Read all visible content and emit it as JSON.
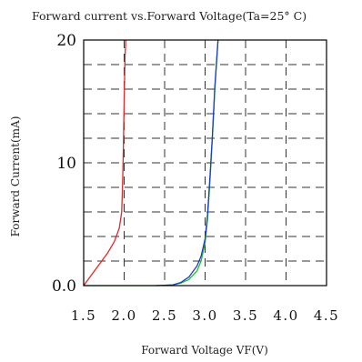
{
  "chart_data": {
    "type": "line",
    "title": "Forward current vs.Forward Voltage(Ta=25° C)",
    "xlabel": "Forward Voltage VF(V)",
    "ylabel": "Forward Current(mA)",
    "xlim": [
      1.5,
      4.5
    ],
    "ylim": [
      0,
      20
    ],
    "grid": true,
    "x_ticks": [
      1.5,
      2.0,
      2.5,
      3.0,
      3.5,
      4.0,
      4.5
    ],
    "x_tick_labels": [
      "1.5",
      "2.0",
      "2.5",
      "3.0",
      "3.5",
      "4.0",
      "4.5"
    ],
    "y_ticks": [
      0,
      10,
      20
    ],
    "y_tick_labels": [
      "0.0",
      "10",
      "20"
    ],
    "y_grid": [
      2,
      4,
      6,
      8,
      10,
      12,
      14,
      16,
      18
    ],
    "series": [
      {
        "color": "#e0282a",
        "x": [
          1.5,
          1.6,
          1.7,
          1.8,
          1.88,
          1.94,
          1.97,
          1.98,
          1.99,
          2.0,
          2.01,
          2.02
        ],
        "y": [
          0.0,
          0.9,
          1.8,
          2.7,
          3.6,
          4.7,
          6.0,
          8.0,
          11.0,
          15.0,
          18.5,
          20.0
        ]
      },
      {
        "color": "#1fc41f",
        "x": [
          1.5,
          2.4,
          2.6,
          2.7,
          2.8,
          2.9,
          2.95,
          3.0,
          3.03,
          3.06,
          3.09,
          3.12,
          3.16
        ],
        "y": [
          0.0,
          0.0,
          0.05,
          0.2,
          0.5,
          1.2,
          2.0,
          3.5,
          5.5,
          8.5,
          12.0,
          16.0,
          20.0
        ]
      },
      {
        "color": "#1f3cc8",
        "x": [
          2.4,
          2.6,
          2.7,
          2.8,
          2.9,
          2.95,
          3.0,
          3.03,
          3.06,
          3.09,
          3.12,
          3.16
        ],
        "y": [
          0.0,
          0.05,
          0.25,
          0.7,
          1.6,
          2.4,
          3.8,
          5.8,
          8.8,
          12.2,
          16.2,
          20.0
        ]
      }
    ]
  }
}
